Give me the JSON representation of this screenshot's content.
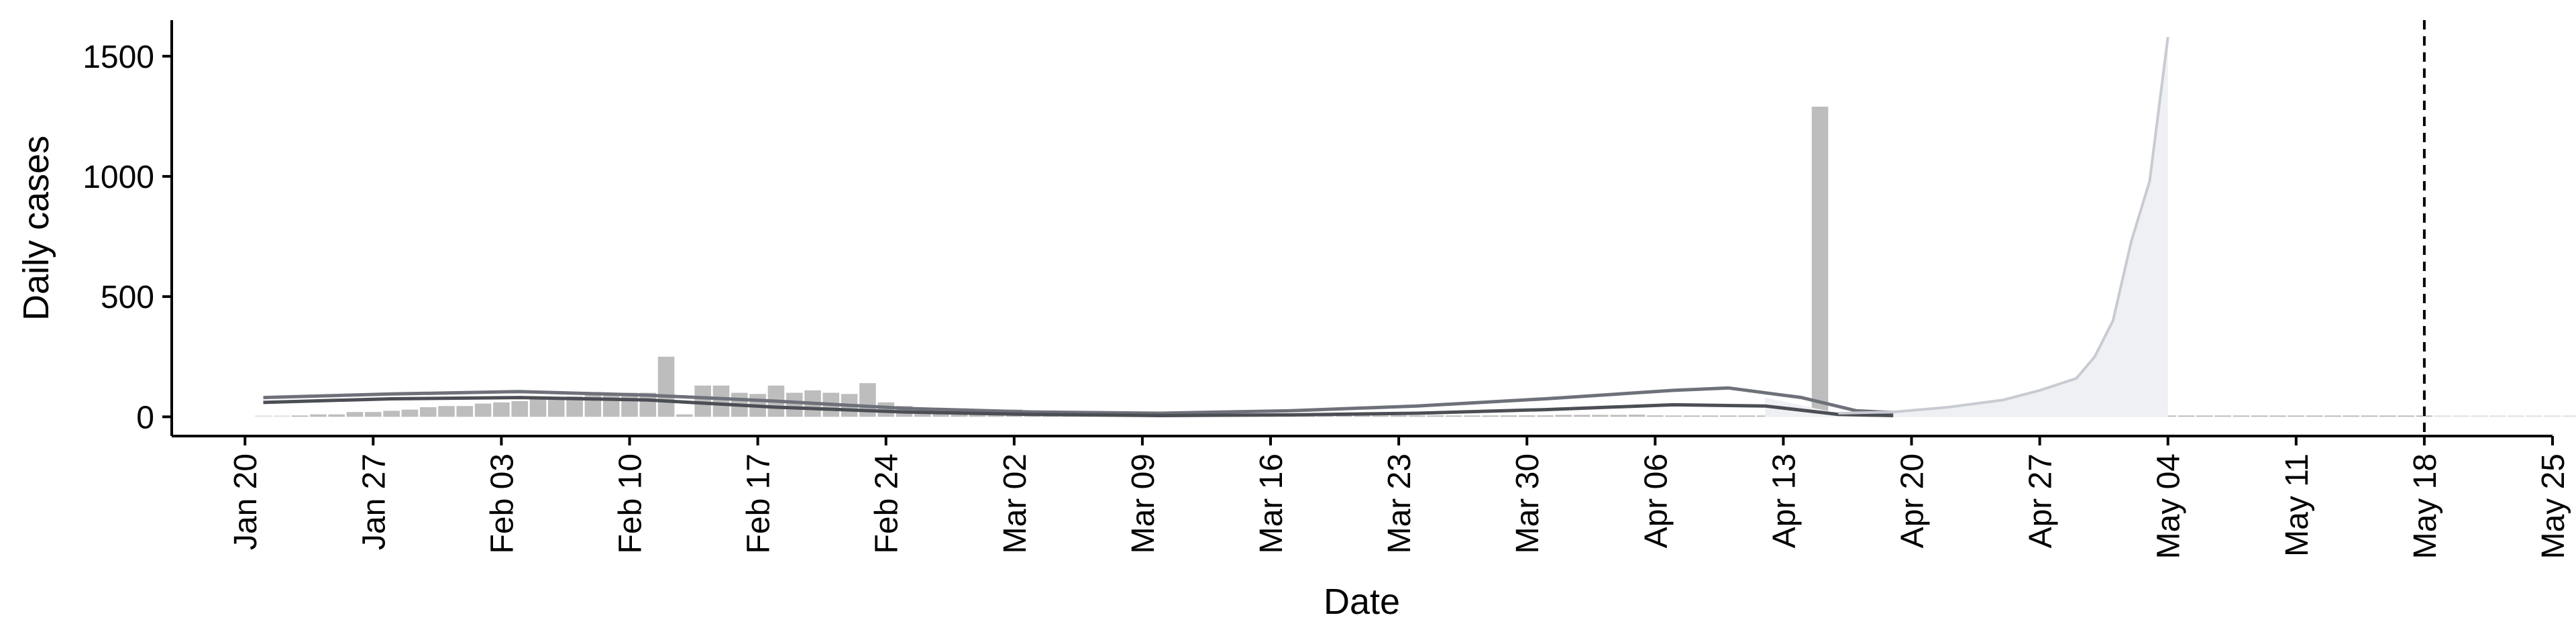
{
  "chart_data": {
    "type": "bar",
    "xlabel": "Date",
    "ylabel": "Daily cases",
    "x_domain": [
      "2020-01-16",
      "2020-05-25"
    ],
    "ylim": [
      -80,
      1650
    ],
    "y_ticks": [
      0,
      500,
      1000,
      1500
    ],
    "x_ticks": [
      {
        "date": "2020-01-20",
        "label": "Jan 20"
      },
      {
        "date": "2020-01-27",
        "label": "Jan 27"
      },
      {
        "date": "2020-02-03",
        "label": "Feb 03"
      },
      {
        "date": "2020-02-10",
        "label": "Feb 10"
      },
      {
        "date": "2020-02-17",
        "label": "Feb 17"
      },
      {
        "date": "2020-02-24",
        "label": "Feb 24"
      },
      {
        "date": "2020-03-02",
        "label": "Mar 02"
      },
      {
        "date": "2020-03-09",
        "label": "Mar 09"
      },
      {
        "date": "2020-03-16",
        "label": "Mar 16"
      },
      {
        "date": "2020-03-23",
        "label": "Mar 23"
      },
      {
        "date": "2020-03-30",
        "label": "Mar 30"
      },
      {
        "date": "2020-04-06",
        "label": "Apr 06"
      },
      {
        "date": "2020-04-13",
        "label": "Apr 13"
      },
      {
        "date": "2020-04-20",
        "label": "Apr 20"
      },
      {
        "date": "2020-04-27",
        "label": "Apr 27"
      },
      {
        "date": "2020-05-04",
        "label": "May 04"
      },
      {
        "date": "2020-05-11",
        "label": "May 11"
      },
      {
        "date": "2020-05-18",
        "label": "May 18"
      },
      {
        "date": "2020-05-25",
        "label": "May 25"
      }
    ],
    "vline_date": "2020-05-18",
    "bars": {
      "start_date": "2020-01-21",
      "values": [
        0,
        0,
        5,
        10,
        10,
        20,
        20,
        25,
        30,
        40,
        45,
        45,
        55,
        60,
        65,
        75,
        80,
        85,
        90,
        95,
        100,
        100,
        250,
        10,
        130,
        130,
        100,
        95,
        130,
        100,
        110,
        100,
        95,
        140,
        60,
        45,
        30,
        30,
        35,
        30,
        25,
        30,
        25,
        20,
        18,
        15,
        15,
        12,
        10,
        10,
        8,
        8,
        6,
        6,
        5,
        5,
        5,
        4,
        4,
        4,
        5,
        5,
        6,
        5,
        6,
        4,
        5,
        5,
        6,
        6,
        6,
        8,
        8,
        8,
        8,
        9,
        6,
        5,
        5,
        4,
        3,
        3,
        3,
        3,
        2,
        1290,
        3,
        2,
        2,
        2,
        2,
        2,
        2,
        2,
        2,
        2,
        2,
        2,
        2,
        2,
        2,
        2,
        1,
        1,
        1,
        1,
        1,
        1,
        1,
        1,
        1,
        1,
        1,
        1,
        1,
        1,
        1,
        1,
        1,
        0,
        0,
        0,
        0,
        0,
        0,
        0,
        0,
        0,
        0,
        0,
        0,
        0
      ]
    },
    "series": [
      {
        "color": "#6e717a",
        "points": [
          [
            "2020-01-21",
            80
          ],
          [
            "2020-01-28",
            95
          ],
          [
            "2020-02-04",
            105
          ],
          [
            "2020-02-11",
            90
          ],
          [
            "2020-02-18",
            65
          ],
          [
            "2020-02-25",
            35
          ],
          [
            "2020-03-03",
            20
          ],
          [
            "2020-03-10",
            15
          ],
          [
            "2020-03-17",
            25
          ],
          [
            "2020-03-24",
            45
          ],
          [
            "2020-03-31",
            75
          ],
          [
            "2020-04-07",
            110
          ],
          [
            "2020-04-10",
            120
          ],
          [
            "2020-04-14",
            80
          ],
          [
            "2020-04-17",
            25
          ],
          [
            "2020-04-19",
            18
          ]
        ]
      },
      {
        "color": "#4c4e55",
        "points": [
          [
            "2020-01-21",
            60
          ],
          [
            "2020-01-28",
            75
          ],
          [
            "2020-02-04",
            80
          ],
          [
            "2020-02-11",
            70
          ],
          [
            "2020-02-18",
            40
          ],
          [
            "2020-02-25",
            20
          ],
          [
            "2020-03-03",
            10
          ],
          [
            "2020-03-10",
            5
          ],
          [
            "2020-03-17",
            8
          ],
          [
            "2020-03-24",
            15
          ],
          [
            "2020-03-31",
            30
          ],
          [
            "2020-04-07",
            50
          ],
          [
            "2020-04-12",
            45
          ],
          [
            "2020-04-16",
            10
          ],
          [
            "2020-04-19",
            5
          ]
        ]
      }
    ],
    "forecast": {
      "color": "#c9cbd3",
      "points": [
        [
          "2020-04-16",
          15
        ],
        [
          "2020-04-19",
          20
        ],
        [
          "2020-04-22",
          40
        ],
        [
          "2020-04-25",
          70
        ],
        [
          "2020-04-27",
          110
        ],
        [
          "2020-04-29",
          160
        ],
        [
          "2020-04-30",
          250
        ],
        [
          "2020-05-01",
          400
        ],
        [
          "2020-05-02",
          730
        ],
        [
          "2020-05-03",
          980
        ],
        [
          "2020-05-04",
          1580
        ]
      ],
      "band_points": [
        [
          "2020-04-12",
          80
        ],
        [
          "2020-04-16",
          15
        ],
        [
          "2020-04-19",
          20
        ],
        [
          "2020-04-22",
          40
        ],
        [
          "2020-04-25",
          70
        ],
        [
          "2020-04-27",
          110
        ],
        [
          "2020-04-29",
          160
        ],
        [
          "2020-04-30",
          250
        ],
        [
          "2020-05-01",
          400
        ],
        [
          "2020-05-02",
          730
        ],
        [
          "2020-05-03",
          980
        ],
        [
          "2020-05-04",
          1580
        ]
      ]
    }
  }
}
